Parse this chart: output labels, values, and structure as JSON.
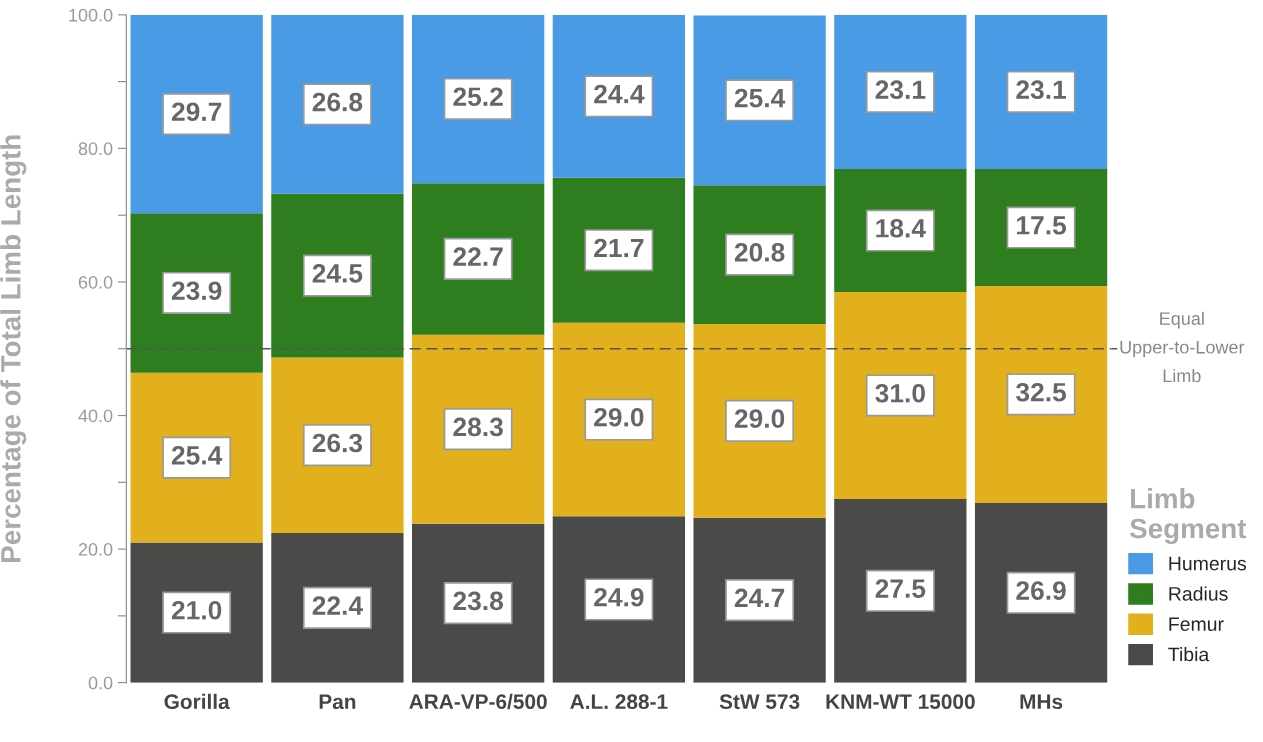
{
  "chart_data": {
    "type": "bar",
    "stacked": true,
    "ylabel": "Percentage of Total Limb Length",
    "legend_title": "Limb Segment",
    "categories": [
      "Gorilla",
      "Pan",
      "ARA-VP-6/500",
      "A.L. 288-1",
      "StW 573",
      "KNM-WT 15000",
      "MHs"
    ],
    "series": [
      {
        "name": "Tibia",
        "color": "#4a4a48",
        "values": [
          21.0,
          22.4,
          23.8,
          24.9,
          24.7,
          27.5,
          26.9
        ],
        "value_labels": [
          "21.0",
          "22.4",
          "23.8",
          "24.9",
          "24.7",
          "27.5",
          "26.9"
        ]
      },
      {
        "name": "Femur",
        "color": "#e2b01c",
        "values": [
          25.4,
          26.3,
          28.3,
          29.0,
          29.0,
          31.0,
          32.5
        ],
        "value_labels": [
          "25.4",
          "26.3",
          "28.3",
          "29.0",
          "29.0",
          "31.0",
          "32.5"
        ]
      },
      {
        "name": "Radius",
        "color": "#2e7d1e",
        "values": [
          23.9,
          24.5,
          22.7,
          21.7,
          20.8,
          18.4,
          17.5
        ],
        "value_labels": [
          "23.9",
          "24.5",
          "22.7",
          "21.7",
          "20.8",
          "18.4",
          "17.5"
        ]
      },
      {
        "name": "Humerus",
        "color": "#4a9be6",
        "values": [
          29.7,
          26.8,
          25.2,
          24.4,
          25.4,
          23.1,
          23.1
        ],
        "value_labels": [
          "29.7",
          "26.8",
          "25.2",
          "24.4",
          "25.4",
          "23.1",
          "23.1"
        ]
      }
    ],
    "ylim": [
      0,
      100
    ],
    "yticks": [
      {
        "value": 0,
        "label": "0.0"
      },
      {
        "value": 10,
        "label": null
      },
      {
        "value": 20,
        "label": "20.0"
      },
      {
        "value": 30,
        "label": null
      },
      {
        "value": 40,
        "label": "40.0"
      },
      {
        "value": 50,
        "label": null
      },
      {
        "value": 60,
        "label": "60.0"
      },
      {
        "value": 70,
        "label": null
      },
      {
        "value": 80,
        "label": "80.0"
      },
      {
        "value": 90,
        "label": null
      },
      {
        "value": 100,
        "label": "100.0"
      }
    ],
    "ref_lines": [
      {
        "axis": "y",
        "value": 50,
        "label": "Equal Upper-to-Lower Limb",
        "color": "#555555",
        "line_style": "dashed"
      }
    ],
    "legend": "bottom right",
    "grid": false
  }
}
